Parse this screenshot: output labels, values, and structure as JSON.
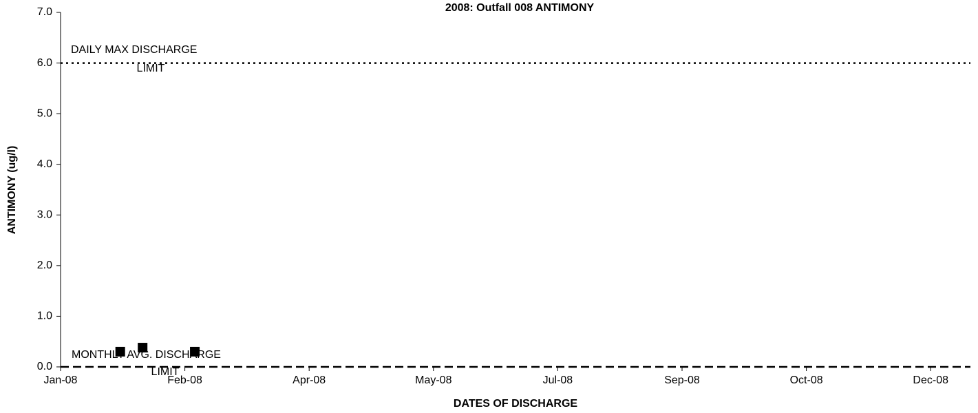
{
  "chart_data": {
    "type": "scatter",
    "title": "2008: Outfall 008 ANTIMONY",
    "xlabel": "DATES OF DISCHARGE",
    "ylabel": "ANTIMONY (ug/l)",
    "series": [
      {
        "color": "#000000",
        "marker": "square",
        "x": [
          39472,
          39481,
          39502
        ],
        "values": [
          0.3,
          0.38,
          0.3
        ]
      }
    ],
    "reference_lines": [
      {
        "label": [
          "DAILY MAX DISCHARGE",
          "LIMIT"
        ],
        "value": 6,
        "style": "dotted",
        "color": "#000000"
      },
      {
        "label": [
          "MONTHLY AVG. DISCHARGE",
          "LIMIT"
        ],
        "value": 0,
        "style": "dashed",
        "color": "#000000"
      }
    ],
    "xlim": [
      39448,
      39814
    ],
    "xticks": [
      {
        "value": 39448,
        "label": "Jan-08"
      },
      {
        "value": 39498,
        "label": "Feb-08"
      },
      {
        "value": 39548,
        "label": "Apr-08"
      },
      {
        "value": 39598,
        "label": "May-08"
      },
      {
        "value": 39648,
        "label": "Jul-08"
      },
      {
        "value": 39698,
        "label": "Sep-08"
      },
      {
        "value": 39748,
        "label": "Oct-08"
      },
      {
        "value": 39798,
        "label": "Dec-08"
      }
    ],
    "ylim": [
      0,
      7
    ],
    "yticks": [
      {
        "value": 0,
        "label": "0.0"
      },
      {
        "value": 1,
        "label": "1.0"
      },
      {
        "value": 2,
        "label": "2.0"
      },
      {
        "value": 3,
        "label": "3.0"
      },
      {
        "value": 4,
        "label": "4.0"
      },
      {
        "value": 5,
        "label": "5.0"
      },
      {
        "value": 6,
        "label": "6.0"
      },
      {
        "value": 7,
        "label": "7.0"
      }
    ],
    "grid": false
  }
}
